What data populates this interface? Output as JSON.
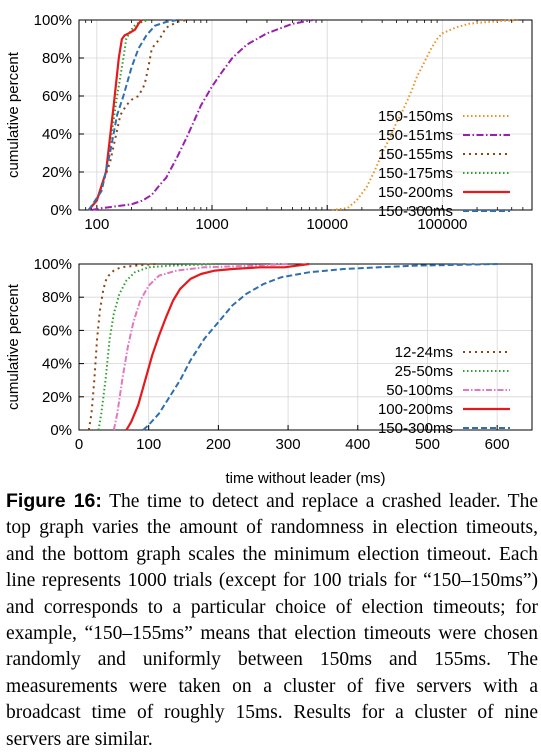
{
  "chart_data": [
    {
      "type": "line",
      "x_scale": "log",
      "xlim": [
        70,
        600000
      ],
      "ylim": [
        0,
        100
      ],
      "ylabel": "cumulative percent",
      "xlabel": "",
      "x_ticks": [
        100,
        1000,
        10000,
        100000
      ],
      "x_tick_labels": [
        "100",
        "1000",
        "10000",
        "100000"
      ],
      "y_ticks": [
        0,
        20,
        40,
        60,
        80,
        100
      ],
      "y_tick_labels": [
        "0%",
        "20%",
        "40%",
        "60%",
        "80%",
        "100%"
      ],
      "grid": true,
      "legend_position": "bottom-right",
      "series": [
        {
          "name": "150-150ms",
          "color": "#e69422",
          "dash": "1.5,2.5",
          "points": [
            [
              11000,
              0
            ],
            [
              15000,
              1
            ],
            [
              18000,
              5
            ],
            [
              22000,
              12
            ],
            [
              26000,
              21
            ],
            [
              30000,
              30
            ],
            [
              35000,
              38
            ],
            [
              40000,
              46
            ],
            [
              45000,
              52
            ],
            [
              50000,
              58
            ],
            [
              55000,
              64
            ],
            [
              60000,
              70
            ],
            [
              70000,
              78
            ],
            [
              80000,
              85
            ],
            [
              90000,
              90
            ],
            [
              100000,
              93
            ],
            [
              130000,
              96
            ],
            [
              170000,
              98
            ],
            [
              250000,
              99
            ],
            [
              450000,
              100
            ]
          ]
        },
        {
          "name": "150-151ms",
          "color": "#9a1fb0",
          "dash": "7,2.5,1.5,2.5",
          "points": [
            [
              90,
              0
            ],
            [
              110,
              1
            ],
            [
              150,
              2
            ],
            [
              200,
              3
            ],
            [
              250,
              5
            ],
            [
              300,
              8
            ],
            [
              350,
              13
            ],
            [
              400,
              17
            ],
            [
              500,
              28
            ],
            [
              600,
              38
            ],
            [
              700,
              47
            ],
            [
              800,
              55
            ],
            [
              1000,
              65
            ],
            [
              1200,
              72
            ],
            [
              1500,
              80
            ],
            [
              2000,
              87
            ],
            [
              3000,
              93
            ],
            [
              5000,
              98
            ],
            [
              7500,
              100
            ]
          ]
        },
        {
          "name": "150-155ms",
          "color": "#8b4513",
          "dash": "2,4",
          "points": [
            [
              85,
              0
            ],
            [
              100,
              5
            ],
            [
              130,
              25
            ],
            [
              160,
              50
            ],
            [
              180,
              55
            ],
            [
              200,
              58
            ],
            [
              230,
              60
            ],
            [
              260,
              66
            ],
            [
              280,
              75
            ],
            [
              300,
              85
            ],
            [
              350,
              90
            ],
            [
              400,
              96
            ],
            [
              500,
              99
            ],
            [
              600,
              100
            ]
          ]
        },
        {
          "name": "150-175ms",
          "color": "#2ca02c",
          "dash": "1.5,2.5",
          "points": [
            [
              85,
              0
            ],
            [
              100,
              5
            ],
            [
              120,
              20
            ],
            [
              150,
              60
            ],
            [
              170,
              80
            ],
            [
              180,
              90
            ],
            [
              200,
              95
            ],
            [
              220,
              98
            ],
            [
              280,
              100
            ]
          ]
        },
        {
          "name": "150-200ms",
          "color": "#e41a1c",
          "dash": "",
          "points": [
            [
              85,
              0
            ],
            [
              100,
              5
            ],
            [
              120,
              20
            ],
            [
              140,
              55
            ],
            [
              155,
              80
            ],
            [
              165,
              90
            ],
            [
              175,
              92
            ],
            [
              190,
              93
            ],
            [
              215,
              95
            ],
            [
              230,
              98
            ],
            [
              245,
              100
            ]
          ]
        },
        {
          "name": "150-300ms",
          "color": "#2f6fb0",
          "dash": "6,3",
          "points": [
            [
              85,
              0
            ],
            [
              110,
              10
            ],
            [
              130,
              30
            ],
            [
              150,
              50
            ],
            [
              170,
              60
            ],
            [
              200,
              75
            ],
            [
              230,
              85
            ],
            [
              270,
              92
            ],
            [
              320,
              97
            ],
            [
              400,
              99
            ],
            [
              500,
              100
            ]
          ]
        }
      ]
    },
    {
      "type": "line",
      "x_scale": "linear",
      "xlim": [
        0,
        650
      ],
      "ylim": [
        0,
        100
      ],
      "ylabel": "cumulative percent",
      "xlabel": "time without leader (ms)",
      "x_ticks": [
        0,
        100,
        200,
        300,
        400,
        500,
        600
      ],
      "x_tick_labels": [
        "0",
        "100",
        "200",
        "300",
        "400",
        "500",
        "600"
      ],
      "y_ticks": [
        0,
        20,
        40,
        60,
        80,
        100
      ],
      "y_tick_labels": [
        "0%",
        "20%",
        "40%",
        "60%",
        "80%",
        "100%"
      ],
      "grid": true,
      "legend_position": "bottom-right",
      "series": [
        {
          "name": "12-24ms",
          "color": "#8b4513",
          "dash": "2,4",
          "points": [
            [
              14,
              0
            ],
            [
              18,
              10
            ],
            [
              22,
              30
            ],
            [
              26,
              55
            ],
            [
              30,
              72
            ],
            [
              35,
              85
            ],
            [
              40,
              92
            ],
            [
              50,
              96
            ],
            [
              60,
              98
            ],
            [
              80,
              99
            ],
            [
              110,
              100
            ]
          ]
        },
        {
          "name": "25-50ms",
          "color": "#2ca02c",
          "dash": "1.5,2.5",
          "points": [
            [
              28,
              0
            ],
            [
              32,
              10
            ],
            [
              38,
              30
            ],
            [
              44,
              55
            ],
            [
              50,
              70
            ],
            [
              58,
              82
            ],
            [
              68,
              90
            ],
            [
              80,
              95
            ],
            [
              100,
              98
            ],
            [
              130,
              99
            ],
            [
              200,
              100
            ]
          ]
        },
        {
          "name": "50-100ms",
          "color": "#e377c2",
          "dash": "6,2,1.5,2",
          "points": [
            [
              50,
              0
            ],
            [
              55,
              10
            ],
            [
              62,
              30
            ],
            [
              70,
              50
            ],
            [
              78,
              65
            ],
            [
              88,
              78
            ],
            [
              100,
              87
            ],
            [
              115,
              93
            ],
            [
              140,
              96
            ],
            [
              180,
              98
            ],
            [
              250,
              99
            ],
            [
              300,
              100
            ]
          ]
        },
        {
          "name": "100-200ms",
          "color": "#e41a1c",
          "dash": "",
          "points": [
            [
              68,
              0
            ],
            [
              75,
              5
            ],
            [
              85,
              15
            ],
            [
              95,
              30
            ],
            [
              105,
              45
            ],
            [
              115,
              57
            ],
            [
              125,
              68
            ],
            [
              135,
              78
            ],
            [
              145,
              85
            ],
            [
              160,
              91
            ],
            [
              175,
              94
            ],
            [
              195,
              96
            ],
            [
              220,
              97
            ],
            [
              260,
              98
            ],
            [
              295,
              98
            ],
            [
              330,
              100
            ]
          ]
        },
        {
          "name": "150-300ms",
          "color": "#2f6fb0",
          "dash": "6,3",
          "points": [
            [
              92,
              0
            ],
            [
              100,
              3
            ],
            [
              115,
              10
            ],
            [
              130,
              20
            ],
            [
              145,
              30
            ],
            [
              160,
              42
            ],
            [
              180,
              55
            ],
            [
              200,
              65
            ],
            [
              220,
              75
            ],
            [
              240,
              82
            ],
            [
              265,
              88
            ],
            [
              290,
              92
            ],
            [
              330,
              95
            ],
            [
              380,
              97
            ],
            [
              430,
              98
            ],
            [
              480,
              99
            ],
            [
              600,
              100
            ]
          ]
        }
      ]
    }
  ],
  "caption": {
    "label": "Figure 16:",
    "text": "The time to detect and replace a crashed leader. The top graph varies the amount of randomness in election timeouts, and the bottom graph scales the minimum election timeout. Each line represents 1000 trials (except for 100 trials for “150–150ms”) and corresponds to a particular choice of election timeouts; for example, “150–155ms” means that election timeouts were chosen randomly and uniformly between 150ms and 155ms. The measurements were taken on a cluster of five servers with a broadcast time of roughly 15ms. Results for a cluster of nine servers are similar."
  }
}
